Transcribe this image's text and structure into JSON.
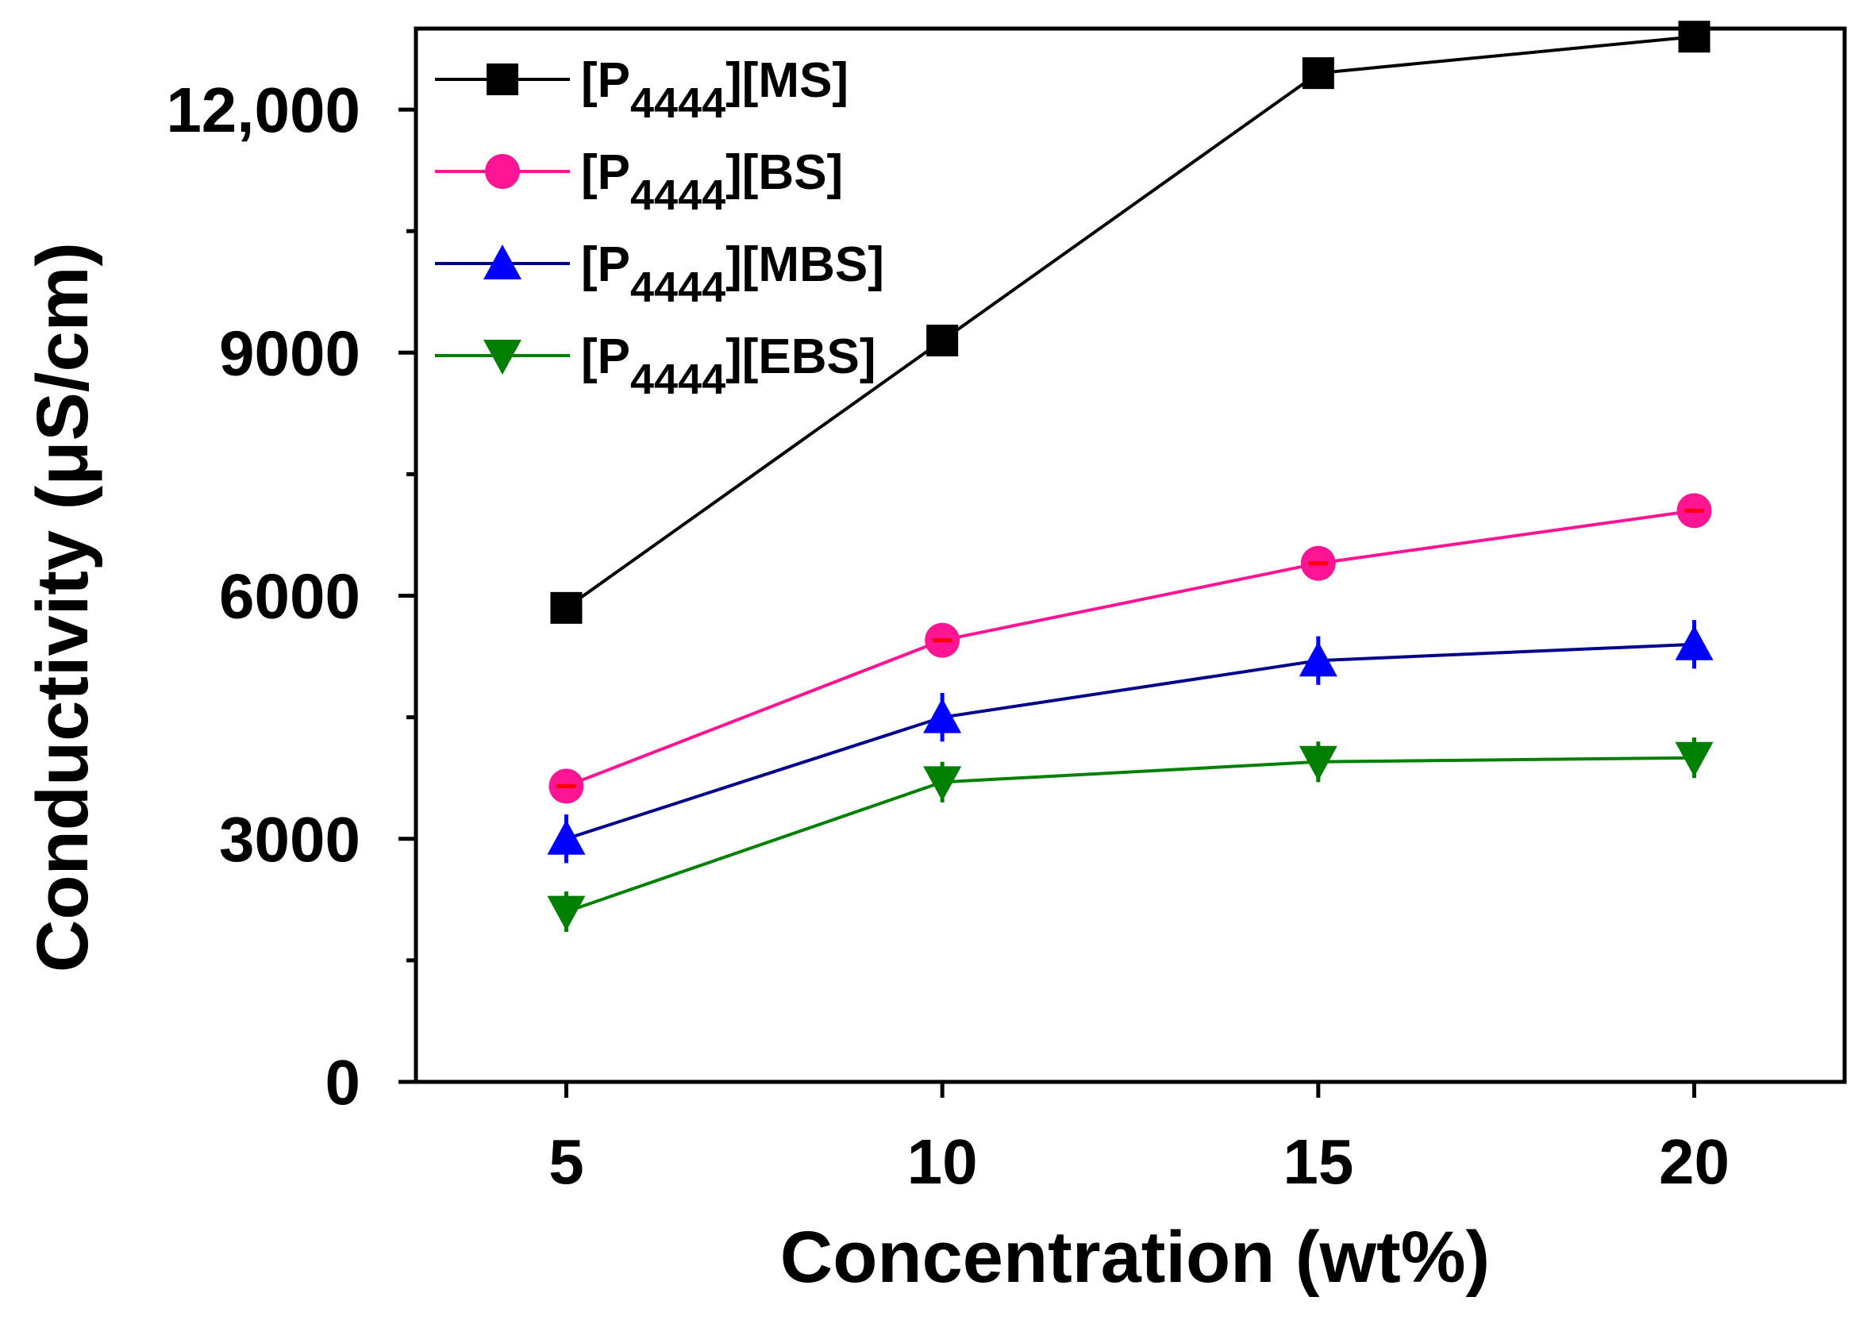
{
  "chart_data": {
    "type": "line",
    "title": "",
    "xlabel": "Concentration (wt%)",
    "ylabel": "Conductivity (μS/cm)",
    "x": [
      5,
      10,
      15,
      20
    ],
    "xlim": [
      3,
      22
    ],
    "ylim": [
      0,
      13000
    ],
    "x_ticks": [
      5,
      10,
      15,
      20
    ],
    "x_tick_labels": [
      "5",
      "10",
      "15",
      "20"
    ],
    "y_ticks": [
      0,
      3000,
      6000,
      9000,
      12000
    ],
    "y_tick_labels": [
      "0",
      "3000",
      "6000",
      "9000",
      "12,000"
    ],
    "y_minor_ticks": [
      1500,
      4500,
      7500,
      10500
    ],
    "grid": false,
    "legend_position": "top-left",
    "series": [
      {
        "name_main": "[P",
        "name_sub": "4444",
        "name_tail": "][MS]",
        "marker": "square",
        "line_color": "#000000",
        "marker_color": "#000000",
        "values": [
          5850,
          9150,
          12450,
          12900
        ],
        "errors": [
          150,
          150,
          150,
          150
        ]
      },
      {
        "name_main": "[P",
        "name_sub": "4444",
        "name_tail": "][BS]",
        "marker": "circle",
        "line_color": "#ff1493",
        "marker_color": "#ff1493",
        "error_color": "#ff0000",
        "values": [
          3650,
          5450,
          6400,
          7050
        ],
        "errors": [
          200,
          200,
          200,
          200
        ]
      },
      {
        "name_main": "[P",
        "name_sub": "4444",
        "name_tail": "][MBS]",
        "marker": "triangle-up",
        "line_color": "#00008b",
        "marker_color": "#0000ff",
        "values": [
          3000,
          4500,
          5200,
          5400
        ],
        "errors": [
          300,
          300,
          300,
          300
        ]
      },
      {
        "name_main": "[P",
        "name_sub": "4444",
        "name_tail": "][EBS]",
        "marker": "triangle-down",
        "line_color": "#008000",
        "marker_color": "#008000",
        "values": [
          2100,
          3700,
          3950,
          4000
        ],
        "errors": [
          250,
          250,
          250,
          250
        ]
      }
    ]
  }
}
